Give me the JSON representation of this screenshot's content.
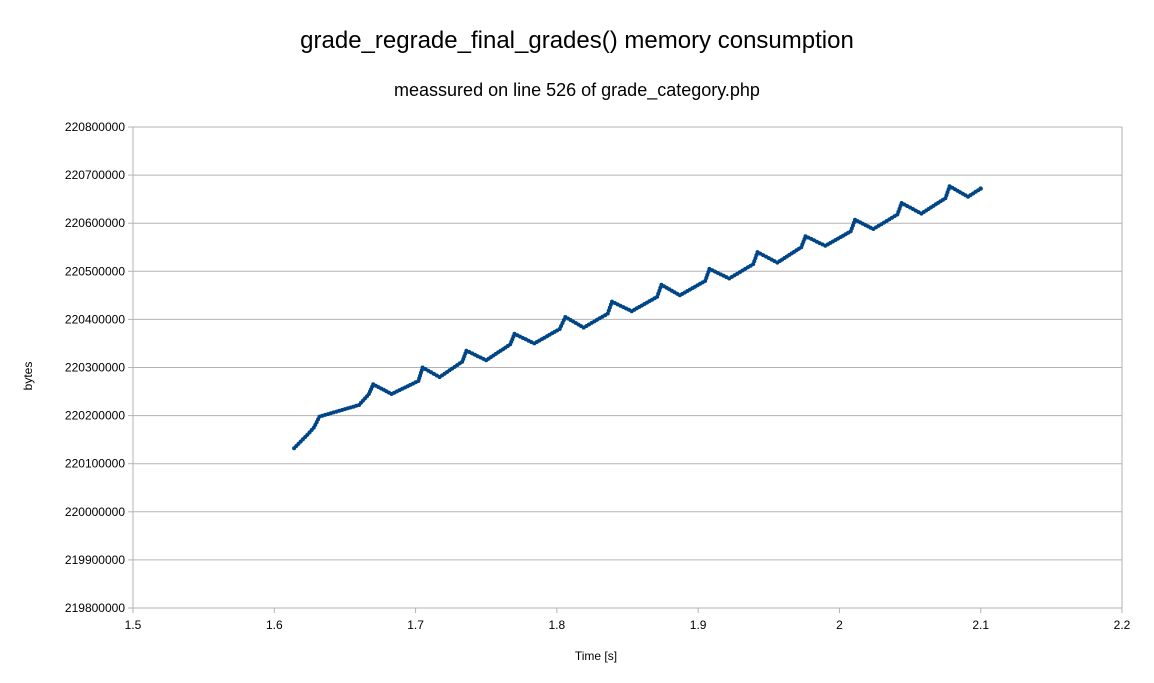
{
  "chart_data": {
    "type": "scatter",
    "title": "grade_regrade_final_grades() memory consumption",
    "subtitle": "meassured on line 526 of grade_category.php",
    "xlabel": "Time [s]",
    "ylabel": "bytes",
    "xlim": [
      1.5,
      2.2
    ],
    "ylim": [
      219800000,
      220800000
    ],
    "x_ticks": [
      "1.5",
      "1.6",
      "1.7",
      "1.8",
      "1.9",
      "2",
      "2.1",
      "2.2"
    ],
    "y_ticks": [
      "219800000",
      "219900000",
      "220000000",
      "220100000",
      "220200000",
      "220300000",
      "220400000",
      "220500000",
      "220600000",
      "220700000",
      "220800000"
    ],
    "grid": "horizontal",
    "legend": "none",
    "marker_color": "#004586",
    "series": [
      {
        "x": [
          1.614,
          1.625,
          1.628,
          1.632,
          1.66,
          1.667,
          1.67,
          1.683,
          1.702,
          1.705,
          1.717,
          1.733,
          1.736,
          1.75,
          1.767,
          1.77,
          1.784,
          1.802,
          1.806,
          1.819,
          1.836,
          1.839,
          1.853,
          1.871,
          1.874,
          1.887,
          1.905,
          1.908,
          1.922,
          1.939,
          1.942,
          1.956,
          1.973,
          1.976,
          1.99,
          2.008,
          2.011,
          2.024,
          2.041,
          2.044,
          2.058,
          2.075,
          2.078,
          2.091,
          2.1
        ],
        "y": [
          220132000,
          220165000,
          220175000,
          220198000,
          220222000,
          220245000,
          220265000,
          220245000,
          220272000,
          220300000,
          220280000,
          220312000,
          220335000,
          220315000,
          220348000,
          220370000,
          220350000,
          220380000,
          220405000,
          220383000,
          220412000,
          220437000,
          220417000,
          220447000,
          220472000,
          220450000,
          220480000,
          220505000,
          220485000,
          220515000,
          220540000,
          220518000,
          220550000,
          220573000,
          220553000,
          220583000,
          220607000,
          220588000,
          220618000,
          220642000,
          220620000,
          220652000,
          220677000,
          220655000,
          220672000
        ]
      }
    ]
  }
}
